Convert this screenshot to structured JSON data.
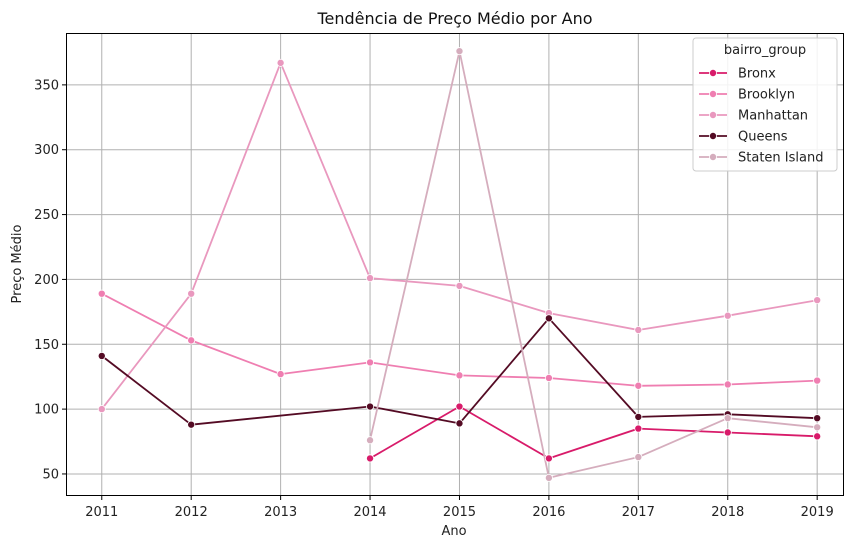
{
  "chart_data": {
    "type": "line",
    "title": "Tendência de Preço Médio por Ano",
    "xlabel": "Ano",
    "ylabel": "Preço Médio",
    "x": [
      2011,
      2012,
      2013,
      2014,
      2015,
      2016,
      2017,
      2018,
      2019
    ],
    "xlim": [
      2010.6,
      2019.3
    ],
    "ylim": [
      33,
      390
    ],
    "yticks": [
      50,
      100,
      150,
      200,
      250,
      300,
      350
    ],
    "grid": true,
    "legend": {
      "title": "bairro_group",
      "placement": "top-right"
    },
    "series": [
      {
        "name": "Bronx",
        "color": "#d81b6a",
        "x": [
          2014,
          2015,
          2016,
          2017,
          2018,
          2019
        ],
        "values": [
          62,
          102,
          62,
          85,
          82,
          79
        ]
      },
      {
        "name": "Brooklyn",
        "color": "#ef7eb1",
        "x": [
          2011,
          2012,
          2013,
          2014,
          2015,
          2016,
          2017,
          2018,
          2019
        ],
        "values": [
          189,
          153,
          127,
          136,
          126,
          124,
          118,
          119,
          122
        ]
      },
      {
        "name": "Manhattan",
        "color": "#e998be",
        "x": [
          2011,
          2012,
          2013,
          2014,
          2015,
          2016,
          2017,
          2018,
          2019
        ],
        "values": [
          100,
          189,
          367,
          201,
          195,
          174,
          161,
          172,
          184
        ]
      },
      {
        "name": "Queens",
        "color": "#540b24",
        "x": [
          2011,
          2012,
          2014,
          2015,
          2016,
          2017,
          2018,
          2019
        ],
        "values": [
          141,
          88,
          102,
          89,
          170,
          94,
          96,
          93
        ]
      },
      {
        "name": "Staten Island",
        "color": "#d5adbd",
        "x": [
          2014,
          2015,
          2016,
          2017,
          2018,
          2019
        ],
        "values": [
          76,
          376,
          47,
          63,
          93,
          86
        ]
      }
    ]
  }
}
